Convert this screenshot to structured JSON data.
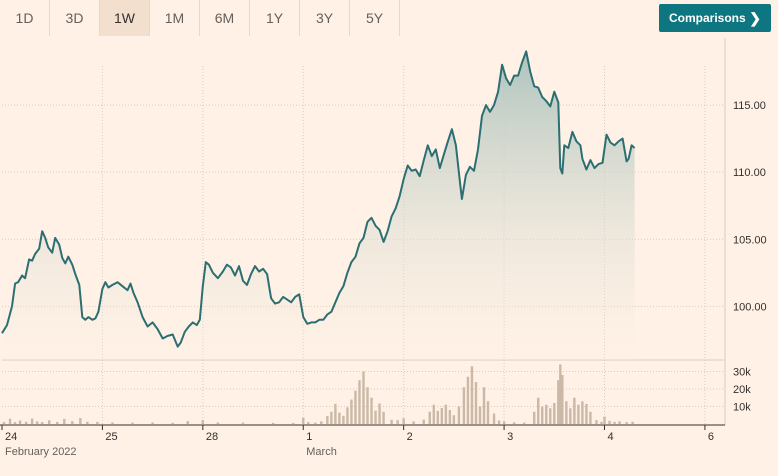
{
  "range_tabs": [
    {
      "label": "1D",
      "active": false
    },
    {
      "label": "3D",
      "active": false
    },
    {
      "label": "1W",
      "active": true
    },
    {
      "label": "1M",
      "active": false
    },
    {
      "label": "6M",
      "active": false
    },
    {
      "label": "1Y",
      "active": false
    },
    {
      "label": "3Y",
      "active": false
    },
    {
      "label": "5Y",
      "active": false
    }
  ],
  "comparisons_button": {
    "label": "Comparisons"
  },
  "colors": {
    "background": "#fff1e5",
    "line": "#2b6f73",
    "area": "#b5c9c2",
    "volume": "#cbb8a6",
    "grid": "#d9ccbf",
    "button": "#0d7680"
  },
  "chart_data": {
    "type": "line",
    "price_axis": {
      "ticks": [
        100,
        105,
        110,
        115
      ],
      "tick_labels": [
        "100.00",
        "105.00",
        "110.00",
        "115.00"
      ],
      "range": [
        96,
        120
      ]
    },
    "volume_axis": {
      "ticks": [
        10000,
        20000,
        30000
      ],
      "tick_labels": [
        "10k",
        "20k",
        "30k"
      ],
      "range": [
        0,
        36000
      ]
    },
    "x_axis": {
      "range": [
        0,
        7.2
      ],
      "ticks": [
        {
          "x": 0,
          "label": "24",
          "sublabel": "February 2022"
        },
        {
          "x": 1,
          "label": "25",
          "sublabel": ""
        },
        {
          "x": 2,
          "label": "28",
          "sublabel": ""
        },
        {
          "x": 3,
          "label": "1",
          "sublabel": "March"
        },
        {
          "x": 4,
          "label": "2",
          "sublabel": ""
        },
        {
          "x": 5,
          "label": "3",
          "sublabel": ""
        },
        {
          "x": 6,
          "label": "4",
          "sublabel": ""
        },
        {
          "x": 7,
          "label": "6",
          "sublabel": ""
        }
      ]
    },
    "price": [
      [
        0.0,
        98.0
      ],
      [
        0.05,
        98.6
      ],
      [
        0.1,
        100.0
      ],
      [
        0.13,
        101.7
      ],
      [
        0.16,
        101.8
      ],
      [
        0.2,
        102.3
      ],
      [
        0.23,
        102.1
      ],
      [
        0.27,
        103.5
      ],
      [
        0.3,
        103.4
      ],
      [
        0.33,
        103.9
      ],
      [
        0.37,
        104.3
      ],
      [
        0.4,
        105.6
      ],
      [
        0.43,
        105.1
      ],
      [
        0.46,
        104.4
      ],
      [
        0.5,
        104.0
      ],
      [
        0.53,
        105.1
      ],
      [
        0.57,
        104.6
      ],
      [
        0.6,
        103.6
      ],
      [
        0.63,
        103.2
      ],
      [
        0.66,
        103.7
      ],
      [
        0.7,
        103.1
      ],
      [
        0.73,
        102.4
      ],
      [
        0.77,
        101.6
      ],
      [
        0.8,
        99.2
      ],
      [
        0.83,
        99.0
      ],
      [
        0.86,
        99.2
      ],
      [
        0.9,
        99.0
      ],
      [
        0.93,
        99.1
      ],
      [
        0.96,
        99.6
      ],
      [
        1.0,
        101.3
      ],
      [
        1.03,
        101.8
      ],
      [
        1.06,
        101.4
      ],
      [
        1.1,
        101.6
      ],
      [
        1.15,
        101.8
      ],
      [
        1.2,
        101.5
      ],
      [
        1.25,
        101.2
      ],
      [
        1.28,
        101.7
      ],
      [
        1.31,
        101.0
      ],
      [
        1.35,
        100.3
      ],
      [
        1.4,
        99.2
      ],
      [
        1.45,
        98.5
      ],
      [
        1.5,
        98.8
      ],
      [
        1.55,
        98.3
      ],
      [
        1.6,
        97.6
      ],
      [
        1.65,
        97.8
      ],
      [
        1.7,
        97.9
      ],
      [
        1.75,
        97.0
      ],
      [
        1.78,
        97.3
      ],
      [
        1.82,
        98.1
      ],
      [
        1.86,
        98.5
      ],
      [
        1.9,
        98.8
      ],
      [
        1.94,
        98.6
      ],
      [
        1.97,
        99.0
      ],
      [
        2.0,
        101.5
      ],
      [
        2.03,
        103.3
      ],
      [
        2.06,
        103.1
      ],
      [
        2.1,
        102.5
      ],
      [
        2.15,
        102.1
      ],
      [
        2.2,
        102.6
      ],
      [
        2.24,
        103.1
      ],
      [
        2.28,
        102.9
      ],
      [
        2.32,
        102.3
      ],
      [
        2.36,
        103.0
      ],
      [
        2.4,
        101.9
      ],
      [
        2.44,
        101.6
      ],
      [
        2.48,
        102.4
      ],
      [
        2.52,
        103.0
      ],
      [
        2.56,
        102.6
      ],
      [
        2.6,
        102.8
      ],
      [
        2.64,
        102.4
      ],
      [
        2.68,
        100.6
      ],
      [
        2.72,
        100.2
      ],
      [
        2.76,
        100.3
      ],
      [
        2.8,
        100.7
      ],
      [
        2.84,
        100.5
      ],
      [
        2.88,
        100.3
      ],
      [
        2.92,
        100.7
      ],
      [
        2.96,
        100.9
      ],
      [
        3.0,
        99.2
      ],
      [
        3.04,
        98.7
      ],
      [
        3.08,
        98.8
      ],
      [
        3.12,
        98.8
      ],
      [
        3.16,
        99.0
      ],
      [
        3.2,
        99.0
      ],
      [
        3.24,
        99.4
      ],
      [
        3.28,
        99.6
      ],
      [
        3.32,
        100.3
      ],
      [
        3.36,
        101.0
      ],
      [
        3.4,
        101.5
      ],
      [
        3.44,
        102.5
      ],
      [
        3.48,
        103.3
      ],
      [
        3.52,
        103.7
      ],
      [
        3.56,
        104.7
      ],
      [
        3.6,
        105.1
      ],
      [
        3.64,
        106.3
      ],
      [
        3.68,
        106.6
      ],
      [
        3.72,
        106.0
      ],
      [
        3.76,
        105.7
      ],
      [
        3.8,
        104.8
      ],
      [
        3.84,
        105.6
      ],
      [
        3.88,
        106.7
      ],
      [
        3.92,
        107.3
      ],
      [
        3.96,
        108.2
      ],
      [
        4.0,
        109.5
      ],
      [
        4.04,
        110.5
      ],
      [
        4.08,
        110.1
      ],
      [
        4.12,
        110.2
      ],
      [
        4.16,
        109.7
      ],
      [
        4.2,
        110.9
      ],
      [
        4.24,
        112.0
      ],
      [
        4.28,
        111.2
      ],
      [
        4.32,
        111.7
      ],
      [
        4.36,
        110.3
      ],
      [
        4.4,
        111.3
      ],
      [
        4.44,
        112.3
      ],
      [
        4.48,
        113.2
      ],
      [
        4.52,
        112.0
      ],
      [
        4.56,
        109.3
      ],
      [
        4.58,
        108.0
      ],
      [
        4.62,
        109.8
      ],
      [
        4.66,
        110.4
      ],
      [
        4.7,
        110.1
      ],
      [
        4.74,
        111.7
      ],
      [
        4.78,
        114.2
      ],
      [
        4.82,
        115.0
      ],
      [
        4.86,
        114.5
      ],
      [
        4.9,
        115.0
      ],
      [
        4.94,
        116.0
      ],
      [
        4.98,
        118.0
      ],
      [
        5.02,
        117.0
      ],
      [
        5.06,
        116.5
      ],
      [
        5.1,
        117.2
      ],
      [
        5.14,
        117.2
      ],
      [
        5.18,
        118.2
      ],
      [
        5.22,
        119.0
      ],
      [
        5.26,
        117.5
      ],
      [
        5.3,
        116.4
      ],
      [
        5.34,
        116.3
      ],
      [
        5.38,
        115.6
      ],
      [
        5.42,
        115.3
      ],
      [
        5.46,
        114.9
      ],
      [
        5.5,
        116.0
      ],
      [
        5.54,
        115.2
      ],
      [
        5.56,
        110.3
      ],
      [
        5.58,
        109.9
      ],
      [
        5.6,
        112.0
      ],
      [
        5.64,
        111.8
      ],
      [
        5.68,
        113.0
      ],
      [
        5.72,
        112.3
      ],
      [
        5.76,
        112.0
      ],
      [
        5.78,
        111.0
      ],
      [
        5.82,
        110.2
      ],
      [
        5.86,
        110.9
      ],
      [
        5.9,
        110.3
      ],
      [
        5.94,
        110.6
      ],
      [
        5.98,
        110.7
      ],
      [
        6.02,
        112.8
      ],
      [
        6.06,
        112.2
      ],
      [
        6.1,
        112.0
      ],
      [
        6.14,
        112.3
      ],
      [
        6.18,
        112.5
      ],
      [
        6.22,
        110.8
      ],
      [
        6.24,
        111.0
      ],
      [
        6.27,
        112.0
      ],
      [
        6.3,
        111.8
      ]
    ],
    "volume": [
      [
        0.02,
        1200
      ],
      [
        0.08,
        3000
      ],
      [
        0.13,
        1100
      ],
      [
        0.18,
        2000
      ],
      [
        0.24,
        1300
      ],
      [
        0.3,
        3100
      ],
      [
        0.35,
        1500
      ],
      [
        0.4,
        1100
      ],
      [
        0.47,
        2100
      ],
      [
        0.55,
        1200
      ],
      [
        0.62,
        2900
      ],
      [
        0.7,
        1600
      ],
      [
        0.78,
        3400
      ],
      [
        0.85,
        1300
      ],
      [
        0.95,
        1200
      ],
      [
        1.1,
        900
      ],
      [
        1.3,
        800
      ],
      [
        1.5,
        900
      ],
      [
        1.7,
        700
      ],
      [
        1.85,
        1700
      ],
      [
        2.0,
        2200
      ],
      [
        2.15,
        900
      ],
      [
        2.4,
        800
      ],
      [
        2.7,
        700
      ],
      [
        2.9,
        600
      ],
      [
        3.0,
        3600
      ],
      [
        3.05,
        1100
      ],
      [
        3.12,
        800
      ],
      [
        3.18,
        1500
      ],
      [
        3.24,
        4500
      ],
      [
        3.28,
        7000
      ],
      [
        3.32,
        11500
      ],
      [
        3.36,
        6500
      ],
      [
        3.4,
        4700
      ],
      [
        3.44,
        9500
      ],
      [
        3.48,
        14000
      ],
      [
        3.52,
        19000
      ],
      [
        3.56,
        25000
      ],
      [
        3.6,
        30000
      ],
      [
        3.64,
        21000
      ],
      [
        3.68,
        15000
      ],
      [
        3.72,
        7600
      ],
      [
        3.76,
        11700
      ],
      [
        3.8,
        7000
      ],
      [
        3.88,
        2400
      ],
      [
        3.94,
        2200
      ],
      [
        4.0,
        3300
      ],
      [
        4.1,
        1500
      ],
      [
        4.2,
        2500
      ],
      [
        4.26,
        7000
      ],
      [
        4.3,
        11000
      ],
      [
        4.34,
        7500
      ],
      [
        4.38,
        9200
      ],
      [
        4.42,
        11000
      ],
      [
        4.46,
        8000
      ],
      [
        4.5,
        5000
      ],
      [
        4.55,
        10000
      ],
      [
        4.6,
        21000
      ],
      [
        4.64,
        27000
      ],
      [
        4.68,
        33000
      ],
      [
        4.72,
        24000
      ],
      [
        4.76,
        10000
      ],
      [
        4.8,
        21000
      ],
      [
        4.84,
        13000
      ],
      [
        4.9,
        6000
      ],
      [
        4.95,
        2000
      ],
      [
        5.0,
        1500
      ],
      [
        5.1,
        1000
      ],
      [
        5.2,
        800
      ],
      [
        5.3,
        7000
      ],
      [
        5.34,
        15000
      ],
      [
        5.38,
        10000
      ],
      [
        5.42,
        11000
      ],
      [
        5.46,
        9000
      ],
      [
        5.5,
        12000
      ],
      [
        5.54,
        25000
      ],
      [
        5.56,
        34000
      ],
      [
        5.58,
        28000
      ],
      [
        5.62,
        13000
      ],
      [
        5.66,
        9000
      ],
      [
        5.7,
        15000
      ],
      [
        5.74,
        11000
      ],
      [
        5.78,
        13000
      ],
      [
        5.82,
        11500
      ],
      [
        5.86,
        7000
      ],
      [
        5.92,
        2200
      ],
      [
        5.97,
        1200
      ],
      [
        6.0,
        4200
      ],
      [
        6.05,
        1800
      ],
      [
        6.1,
        1200
      ],
      [
        6.15,
        1500
      ],
      [
        6.22,
        1100
      ],
      [
        6.28,
        1300
      ]
    ]
  }
}
